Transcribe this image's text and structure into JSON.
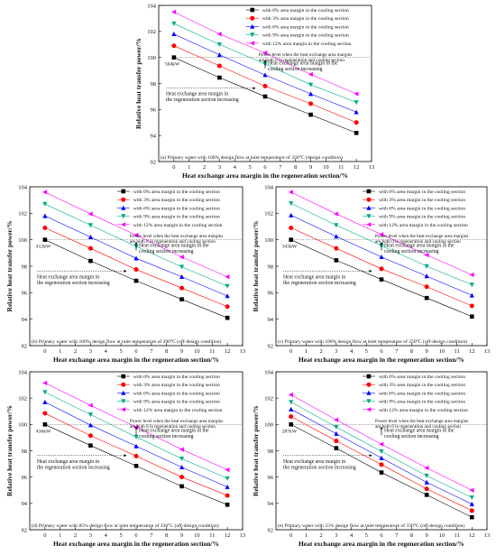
{
  "common": {
    "xlabel": "Heat exchange area margin in the regeneration section/%",
    "ylabel": "Relative heat transfer power/%",
    "legend": [
      "with 0% area margin in the cooling section",
      "with 3% area margin in the cooling section",
      "with 6% area margin in the cooling section",
      "with 9% area margin in the cooling section",
      "with 12% area margin in the cooling section"
    ],
    "series_colors": [
      "#000000",
      "#ff0000",
      "#0000ff",
      "#00aa88",
      "#ff00ff"
    ],
    "baseline_note": "Power level when the heat exchange area margins are both 0 in regeneration and cooling section",
    "cooling_note": "Heat exchange area margin in the cooling section increasing",
    "regen_note": "Heat exchange area margin in the regeneration section increasing"
  },
  "chart_data": [
    {
      "type": "line",
      "caption": "(a) Primary water with 100% design flow at inlet temperature of 330°C (design condition)",
      "power_label": "504kW",
      "x": [
        0,
        3,
        6,
        9,
        12
      ],
      "xlim": [
        -1,
        13
      ],
      "ylim": [
        92,
        104
      ],
      "xticks": [
        0,
        1,
        2,
        3,
        4,
        5,
        6,
        7,
        8,
        9,
        10,
        11,
        12,
        13
      ],
      "yticks": [
        92,
        94,
        96,
        98,
        100,
        102,
        104
      ],
      "series": [
        {
          "values": [
            100.0,
            98.45,
            97.0,
            95.6,
            94.2
          ]
        },
        {
          "values": [
            100.9,
            99.35,
            97.8,
            96.45,
            95.0
          ]
        },
        {
          "values": [
            101.8,
            100.2,
            98.65,
            97.2,
            95.8
          ]
        },
        {
          "values": [
            102.6,
            101.0,
            99.5,
            97.9,
            96.55
          ]
        },
        {
          "values": [
            103.5,
            101.8,
            100.35,
            98.7,
            97.2
          ]
        }
      ]
    },
    {
      "type": "line",
      "caption": "(b) Primary water with 100% design flow at inlet temperature of 290°C (off-design condition)",
      "power_label": "412kW",
      "x": [
        0,
        3,
        6,
        9,
        12
      ],
      "xlim": [
        -1,
        13
      ],
      "ylim": [
        92,
        104
      ],
      "xticks": [
        0,
        1,
        2,
        3,
        4,
        5,
        6,
        7,
        8,
        9,
        10,
        11,
        12,
        13
      ],
      "yticks": [
        92,
        94,
        96,
        98,
        100,
        102,
        104
      ],
      "series": [
        {
          "values": [
            100.0,
            98.4,
            96.9,
            95.5,
            94.1
          ]
        },
        {
          "values": [
            100.9,
            99.35,
            97.75,
            96.35,
            94.95
          ]
        },
        {
          "values": [
            101.8,
            100.2,
            98.6,
            97.2,
            95.75
          ]
        },
        {
          "values": [
            102.7,
            101.1,
            99.5,
            97.95,
            96.5
          ]
        },
        {
          "values": [
            103.6,
            101.95,
            100.35,
            98.7,
            97.2
          ]
        }
      ]
    },
    {
      "type": "line",
      "caption": "(c) Primary water with 100% design flow at inlet temperature of 250°C (off-design condition)",
      "power_label": "343kW",
      "x": [
        0,
        3,
        6,
        9,
        12
      ],
      "xlim": [
        -1,
        13
      ],
      "ylim": [
        92,
        104
      ],
      "xticks": [
        0,
        1,
        2,
        3,
        4,
        5,
        6,
        7,
        8,
        9,
        10,
        11,
        12,
        13
      ],
      "yticks": [
        92,
        94,
        96,
        98,
        100,
        102,
        104
      ],
      "series": [
        {
          "values": [
            100.0,
            98.45,
            97.0,
            95.6,
            94.2
          ]
        },
        {
          "values": [
            100.9,
            99.35,
            97.8,
            96.45,
            95.0
          ]
        },
        {
          "values": [
            101.85,
            100.25,
            98.7,
            97.25,
            95.8
          ]
        },
        {
          "values": [
            102.75,
            101.1,
            99.55,
            98.0,
            96.6
          ]
        },
        {
          "values": [
            103.6,
            101.95,
            100.4,
            98.85,
            97.35
          ]
        }
      ]
    },
    {
      "type": "line",
      "caption": "(d) Primary water with 85% design flow at inlet temperature of 330°C (off-design condition)",
      "power_label": "436kW",
      "x": [
        0,
        3,
        6,
        9,
        12
      ],
      "xlim": [
        -1,
        13
      ],
      "ylim": [
        92,
        104
      ],
      "xticks": [
        0,
        1,
        2,
        3,
        4,
        5,
        6,
        7,
        8,
        9,
        10,
        11,
        12,
        13
      ],
      "yticks": [
        92,
        94,
        96,
        98,
        100,
        102,
        104
      ],
      "series": [
        {
          "values": [
            100.0,
            98.4,
            96.85,
            95.3,
            93.9
          ]
        },
        {
          "values": [
            100.85,
            99.15,
            97.6,
            96.0,
            94.6
          ]
        },
        {
          "values": [
            101.7,
            99.95,
            98.35,
            96.75,
            95.25
          ]
        },
        {
          "values": [
            102.45,
            100.75,
            99.05,
            97.4,
            95.9
          ]
        },
        {
          "values": [
            103.15,
            101.45,
            99.8,
            98.1,
            96.55
          ]
        }
      ]
    },
    {
      "type": "line",
      "caption": "(e) Primary water with 55% design flow at inlet temperature of 330°C (off-design condition)",
      "power_label": "287kW",
      "x": [
        0,
        3,
        6,
        9,
        12
      ],
      "xlim": [
        -1,
        13
      ],
      "ylim": [
        92,
        104
      ],
      "xticks": [
        0,
        1,
        2,
        3,
        4,
        5,
        6,
        7,
        8,
        9,
        10,
        11,
        12,
        13
      ],
      "yticks": [
        92,
        94,
        96,
        98,
        100,
        102,
        104
      ],
      "series": [
        {
          "values": [
            100.0,
            98.2,
            96.35,
            94.65,
            92.95
          ]
        },
        {
          "values": [
            100.6,
            98.75,
            96.95,
            95.1,
            93.45
          ]
        },
        {
          "values": [
            101.15,
            99.3,
            97.45,
            95.6,
            93.95
          ]
        },
        {
          "values": [
            101.7,
            99.8,
            97.95,
            96.1,
            94.45
          ]
        },
        {
          "values": [
            102.25,
            100.35,
            98.5,
            96.7,
            95.0
          ]
        }
      ]
    }
  ]
}
